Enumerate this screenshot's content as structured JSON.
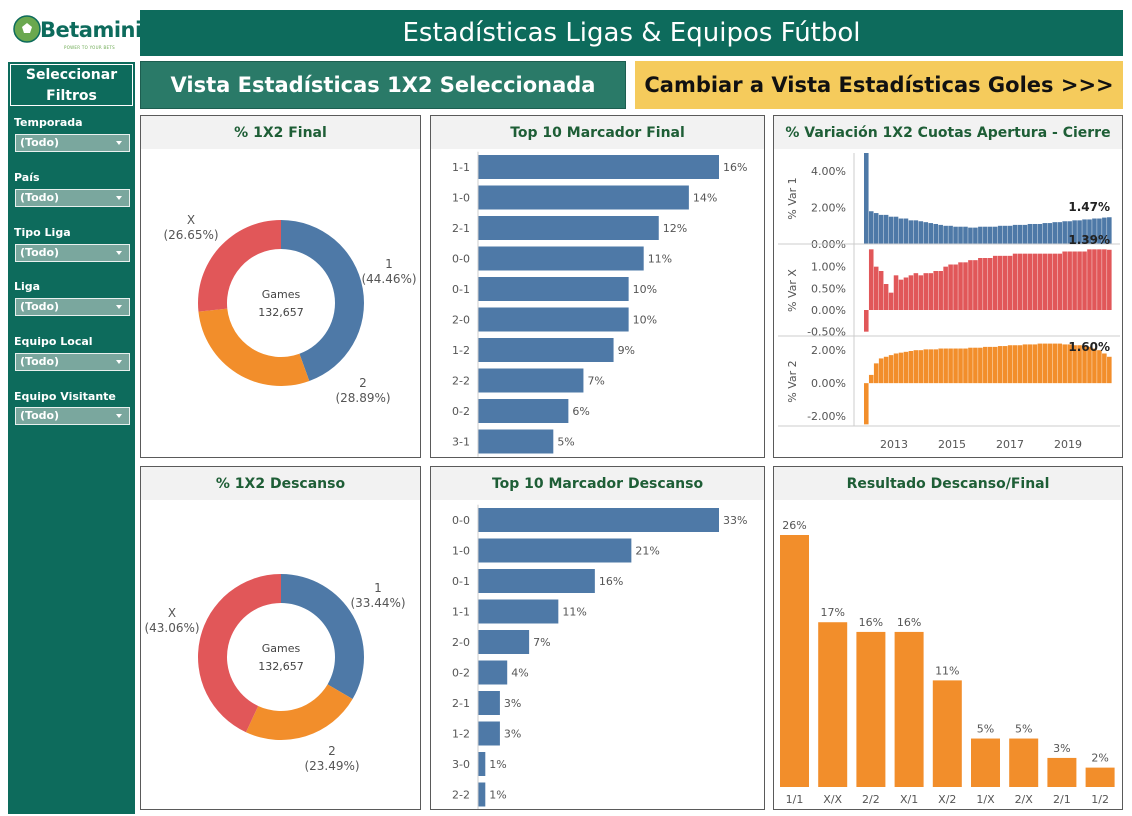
{
  "logo": {
    "text": "Betaminic",
    "tagline": "POWER TO YOUR BETS"
  },
  "header": {
    "title": "Estadísticas Ligas & Equipos Fútbol"
  },
  "sidebar": {
    "title": "Seleccionar Filtros",
    "filters": [
      {
        "label": "Temporada",
        "value": "(Todo)"
      },
      {
        "label": "País",
        "value": "(Todo)"
      },
      {
        "label": "Tipo Liga",
        "value": "(Todo)"
      },
      {
        "label": "Liga",
        "value": "(Todo)"
      },
      {
        "label": "Equipo Local",
        "value": "(Todo)"
      },
      {
        "label": "Equipo Visitante",
        "value": "(Todo)"
      }
    ]
  },
  "views": {
    "selected_label": "Vista Estadísticas 1X2 Seleccionada",
    "switch_label": "Cambiar a Vista Estadísticas Goles >>>"
  },
  "colors": {
    "home": "#4e79a7",
    "draw": "#e15759",
    "away": "#f28e2b",
    "bar": "#4e79a7",
    "ht_ft": "#f28e2b",
    "brand": "#0d6b5c",
    "button": "#f5cb5c"
  },
  "chart_data": [
    {
      "id": "pct_1x2_final",
      "type": "pie",
      "title": "% 1X2 Final",
      "center_label": "Games",
      "center_value": "132,657",
      "slices": [
        {
          "name": "1",
          "label": "(44.46%)",
          "value": 44.46,
          "color": "#4e79a7"
        },
        {
          "name": "2",
          "label": "(28.89%)",
          "value": 28.89,
          "color": "#f28e2b"
        },
        {
          "name": "X",
          "label": "(26.65%)",
          "value": 26.65,
          "color": "#e15759"
        }
      ]
    },
    {
      "id": "top10_final",
      "type": "bar",
      "title": "Top 10 Marcador Final",
      "orientation": "horizontal",
      "categories": [
        "1-1",
        "1-0",
        "2-1",
        "0-0",
        "0-1",
        "2-0",
        "1-2",
        "2-2",
        "0-2",
        "3-1"
      ],
      "values": [
        16,
        14,
        12,
        11,
        10,
        10,
        9,
        7,
        6,
        5
      ],
      "labels": [
        "16%",
        "14%",
        "12%",
        "11%",
        "10%",
        "10%",
        "9%",
        "7%",
        "6%",
        "5%"
      ]
    },
    {
      "id": "odds_variation",
      "type": "area",
      "title": "% Variación 1X2 Cuotas Apertura - Cierre",
      "x_ticks": [
        "2013",
        "2015",
        "2017",
        "2019"
      ],
      "series": [
        {
          "name": "% Var 1",
          "color": "#4e79a7",
          "yticks": [
            "4.00%",
            "2.00%",
            "0.00%"
          ],
          "ylim": [
            0,
            5
          ],
          "last_label": "1.47%",
          "values": [
            5.0,
            1.8,
            1.7,
            1.6,
            1.6,
            1.5,
            1.5,
            1.4,
            1.4,
            1.3,
            1.3,
            1.25,
            1.2,
            1.15,
            1.1,
            1.05,
            1.0,
            1.0,
            0.95,
            0.95,
            0.95,
            0.9,
            0.9,
            0.95,
            0.95,
            0.95,
            0.95,
            1.0,
            1.0,
            1.0,
            1.05,
            1.05,
            1.05,
            1.1,
            1.1,
            1.1,
            1.15,
            1.15,
            1.2,
            1.2,
            1.25,
            1.25,
            1.3,
            1.3,
            1.35,
            1.35,
            1.4,
            1.4,
            1.45,
            1.47
          ]
        },
        {
          "name": "% Var X",
          "color": "#e15759",
          "yticks": [
            "1.00%",
            "0.50%",
            "0.00%",
            "-0.50%"
          ],
          "ylim": [
            -0.6,
            1.5
          ],
          "last_label": "1.39%",
          "values": [
            -0.5,
            1.4,
            1.0,
            0.9,
            0.6,
            0.4,
            0.8,
            0.7,
            0.75,
            0.8,
            0.85,
            0.8,
            0.85,
            0.85,
            0.9,
            0.9,
            1.0,
            1.05,
            1.05,
            1.1,
            1.1,
            1.15,
            1.15,
            1.2,
            1.2,
            1.2,
            1.25,
            1.25,
            1.25,
            1.25,
            1.3,
            1.3,
            1.3,
            1.3,
            1.3,
            1.3,
            1.3,
            1.3,
            1.3,
            1.3,
            1.35,
            1.35,
            1.35,
            1.35,
            1.35,
            1.4,
            1.4,
            1.4,
            1.4,
            1.39
          ]
        },
        {
          "name": "% Var 2",
          "color": "#f28e2b",
          "yticks": [
            "2.00%",
            "0.00%",
            "-2.00%"
          ],
          "ylim": [
            -2.6,
            2.8
          ],
          "last_label": "1.60%",
          "values": [
            -2.5,
            0.5,
            1.2,
            1.5,
            1.6,
            1.7,
            1.8,
            1.85,
            1.9,
            1.95,
            2.0,
            2.0,
            2.05,
            2.05,
            2.05,
            2.1,
            2.1,
            2.1,
            2.1,
            2.1,
            2.1,
            2.15,
            2.15,
            2.15,
            2.2,
            2.2,
            2.2,
            2.25,
            2.25,
            2.3,
            2.3,
            2.3,
            2.35,
            2.35,
            2.35,
            2.4,
            2.4,
            2.4,
            2.4,
            2.4,
            2.35,
            2.35,
            2.3,
            2.3,
            2.25,
            2.2,
            2.1,
            2.0,
            1.8,
            1.6
          ]
        }
      ]
    },
    {
      "id": "pct_1x2_descanso",
      "type": "pie",
      "title": "% 1X2 Descanso",
      "center_label": "Games",
      "center_value": "132,657",
      "slices": [
        {
          "name": "1",
          "label": "(33.44%)",
          "value": 33.44,
          "color": "#4e79a7"
        },
        {
          "name": "2",
          "label": "(23.49%)",
          "value": 23.49,
          "color": "#f28e2b"
        },
        {
          "name": "X",
          "label": "(43.06%)",
          "value": 43.06,
          "color": "#e15759"
        }
      ]
    },
    {
      "id": "top10_descanso",
      "type": "bar",
      "title": "Top 10 Marcador Descanso",
      "orientation": "horizontal",
      "categories": [
        "0-0",
        "1-0",
        "0-1",
        "1-1",
        "2-0",
        "0-2",
        "2-1",
        "1-2",
        "3-0",
        "2-2"
      ],
      "values": [
        33,
        21,
        16,
        11,
        7,
        4,
        3,
        3,
        1,
        1
      ],
      "labels": [
        "33%",
        "21%",
        "16%",
        "11%",
        "7%",
        "4%",
        "3%",
        "3%",
        "1%",
        "1%"
      ]
    },
    {
      "id": "ht_ft",
      "type": "bar",
      "title": "Resultado Descanso/Final",
      "orientation": "vertical",
      "categories": [
        "1/1",
        "X/X",
        "2/2",
        "X/1",
        "X/2",
        "1/X",
        "2/X",
        "2/1",
        "1/2"
      ],
      "values": [
        26,
        17,
        16,
        16,
        11,
        5,
        5,
        3,
        2
      ],
      "labels": [
        "26%",
        "17%",
        "16%",
        "16%",
        "11%",
        "5%",
        "5%",
        "3%",
        "2%"
      ]
    }
  ]
}
